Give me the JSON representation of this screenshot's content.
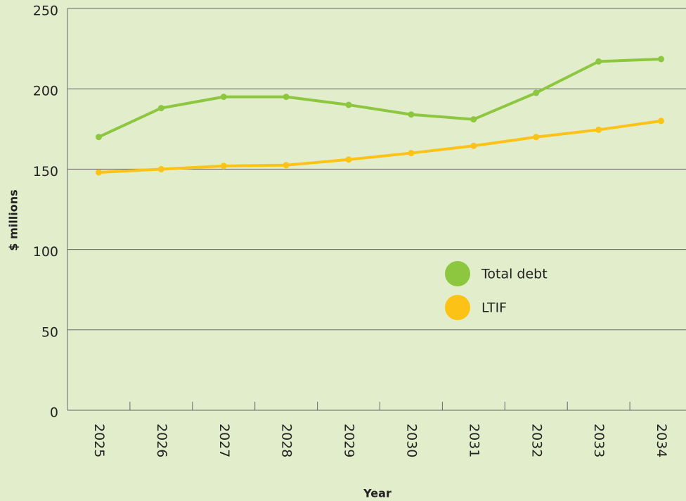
{
  "chart_data": {
    "type": "line",
    "x_label": "Year",
    "y_label": "$ millions",
    "categories": [
      "2025",
      "2026",
      "2027",
      "2028",
      "2029",
      "2030",
      "2031",
      "2032",
      "2033",
      "2034"
    ],
    "series": [
      {
        "name": "Total debt",
        "color": "#8dc63f",
        "values": [
          170,
          188,
          195,
          195,
          190,
          184,
          181,
          197.5,
          217,
          218.5
        ]
      },
      {
        "name": "LTIF",
        "color": "#fdc216",
        "values": [
          148,
          150,
          152,
          152.5,
          156,
          160,
          164.5,
          170,
          174.5,
          180
        ]
      }
    ],
    "ylim": [
      0,
      250
    ],
    "yticks": [
      0,
      50,
      100,
      150,
      200,
      250
    ],
    "grid": true,
    "legend": "right"
  }
}
